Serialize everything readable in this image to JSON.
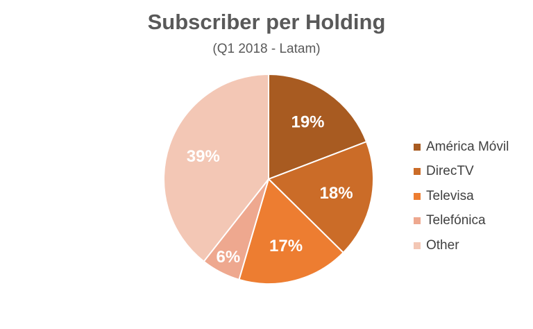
{
  "chart_data": {
    "type": "pie",
    "title": "Subscriber per Holding",
    "subtitle": "(Q1 2018 - Latam)",
    "legend_position": "right",
    "slices": [
      {
        "name": "América Móvil",
        "value": 19,
        "label": "19%",
        "color": "#A85B21"
      },
      {
        "name": "DirecTV",
        "value": 18,
        "label": "18%",
        "color": "#CB6C28"
      },
      {
        "name": "Televisa",
        "value": 17,
        "label": "17%",
        "color": "#ED7D31"
      },
      {
        "name": "Telefónica",
        "value": 6,
        "label": "6%",
        "color": "#EEA88F"
      },
      {
        "name": "Other",
        "value": 39,
        "label": "39%",
        "color": "#F3C7B5"
      }
    ]
  }
}
